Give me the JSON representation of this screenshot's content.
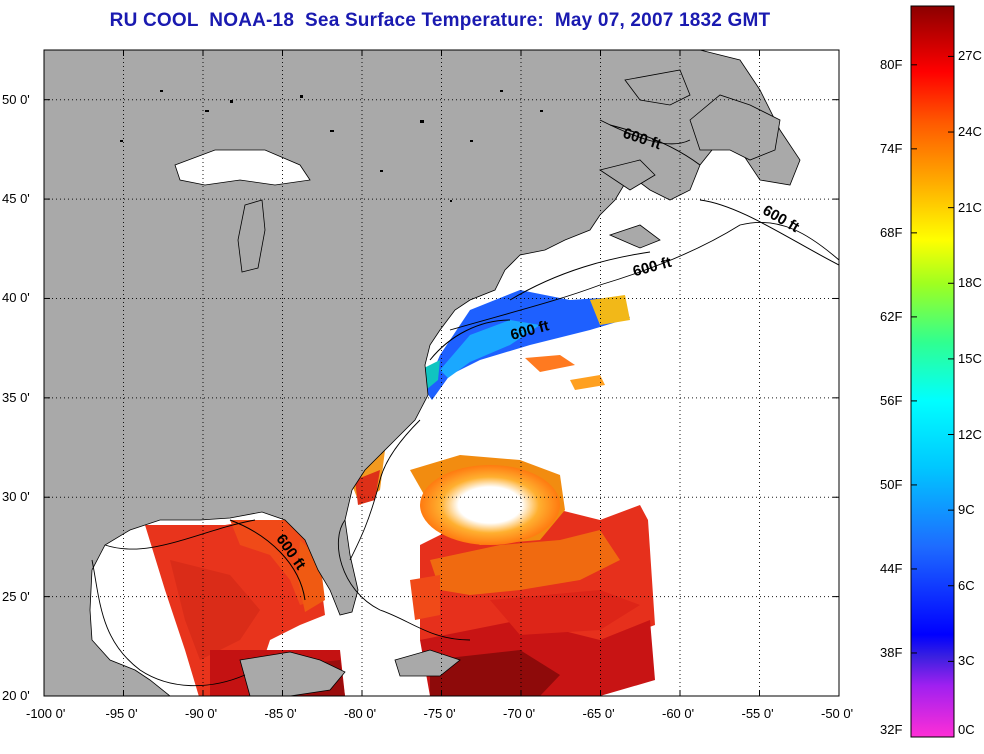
{
  "title": "RU COOL  NOAA-18  Sea Surface Temperature:  May 07, 2007 1832 GMT",
  "map": {
    "longitude_labels": [
      "-100 0'",
      "-95 0'",
      "-90 0'",
      "-85 0'",
      "-80 0'",
      "-75 0'",
      "-70 0'",
      "-65 0'",
      "-60 0'",
      "-55 0'",
      "-50 0'"
    ],
    "latitude_labels": [
      "50 0'",
      "45 0'",
      "40 0'",
      "35 0'",
      "30 0'",
      "25 0'",
      "20 0'"
    ],
    "lon_range": [
      -100,
      -50
    ],
    "lat_range": [
      20,
      52.5
    ],
    "grid": "dotted",
    "land_color": "#a9a9a9",
    "no_data_color": "#ffffff",
    "contour_label": "600 ft"
  },
  "colorbar": {
    "fahrenheit_labels": [
      "80F",
      "74F",
      "68F",
      "62F",
      "56F",
      "50F",
      "44F",
      "38F",
      "32F"
    ],
    "celsius_labels": [
      "27C",
      "24C",
      "21C",
      "18C",
      "15C",
      "12C",
      "9C",
      "6C",
      "3C",
      "0C"
    ],
    "range_c": [
      0,
      29
    ]
  }
}
